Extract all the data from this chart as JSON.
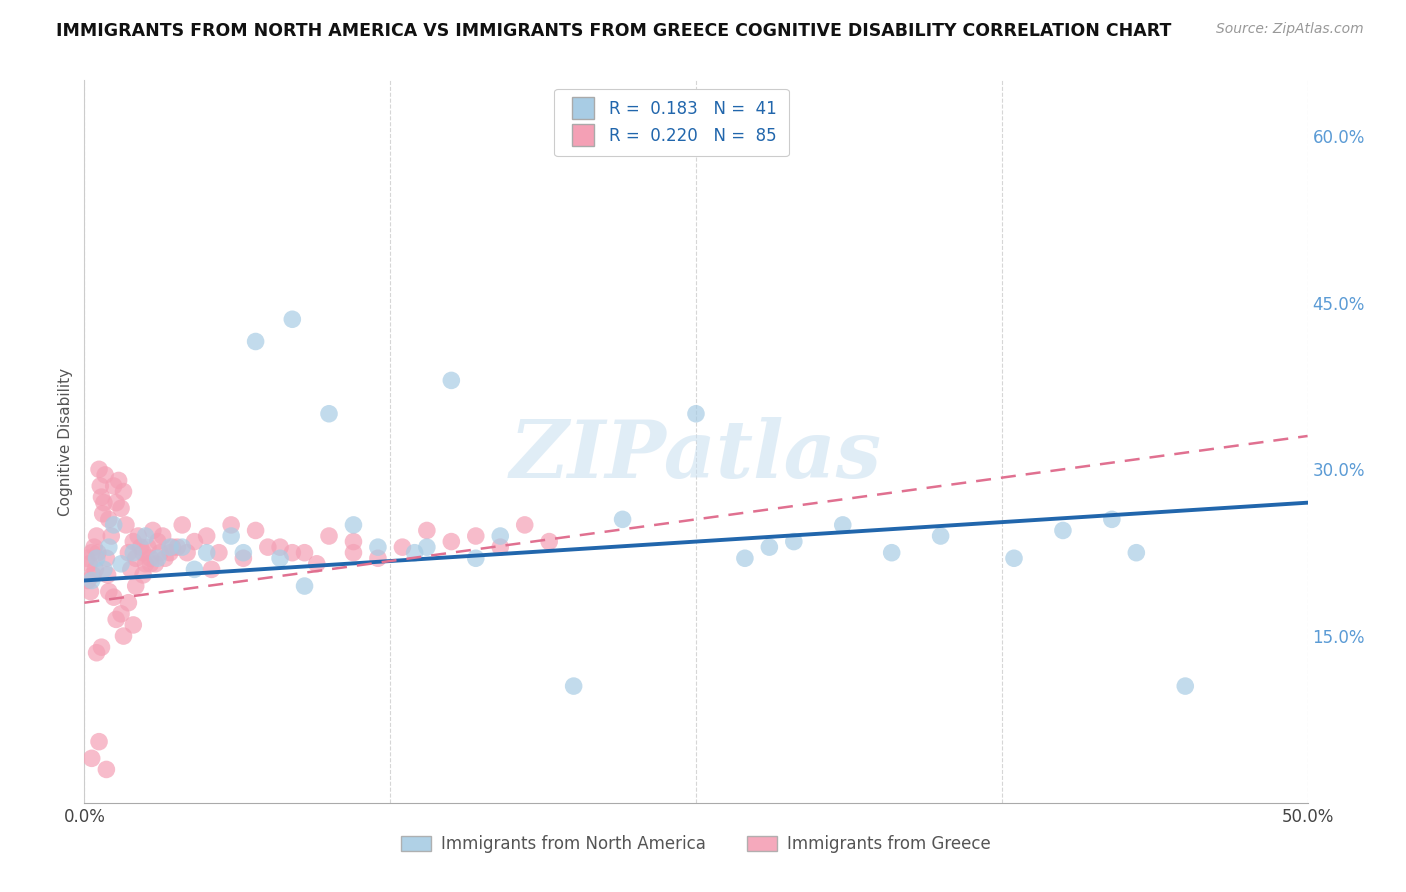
{
  "title": "IMMIGRANTS FROM NORTH AMERICA VS IMMIGRANTS FROM GREECE COGNITIVE DISABILITY CORRELATION CHART",
  "source": "Source: ZipAtlas.com",
  "ylabel": "Cognitive Disability",
  "xlim": [
    0.0,
    50.0
  ],
  "ylim": [
    0.0,
    65.0
  ],
  "ytick_vals": [
    15.0,
    30.0,
    45.0,
    60.0
  ],
  "ytick_labels": [
    "15.0%",
    "30.0%",
    "45.0%",
    "60.0%"
  ],
  "xtick_vals": [
    0.0,
    12.5,
    25.0,
    37.5,
    50.0
  ],
  "xtick_labels": [
    "0.0%",
    "",
    "",
    "",
    "50.0%"
  ],
  "legend1_label": "R =  0.183   N =  41",
  "legend2_label": "R =  0.220   N =  85",
  "series1_color": "#a8cce4",
  "series2_color": "#f4a0b5",
  "series1_line_color": "#2166ac",
  "series2_line_color": "#e07090",
  "series1_name": "Immigrants from North America",
  "series2_name": "Immigrants from Greece",
  "watermark": "ZIPatlas",
  "blue_x": [
    0.3,
    0.5,
    0.8,
    1.0,
    1.5,
    2.0,
    2.5,
    3.0,
    4.0,
    5.0,
    6.0,
    7.0,
    8.5,
    10.0,
    11.0,
    12.0,
    13.5,
    15.0,
    17.0,
    20.0,
    22.0,
    25.0,
    27.0,
    29.0,
    31.0,
    33.0,
    35.0,
    38.0,
    40.0,
    43.0,
    45.0,
    1.2,
    3.5,
    6.5,
    9.0,
    16.0,
    28.0,
    42.0,
    14.0,
    4.5,
    8.0
  ],
  "blue_y": [
    20.0,
    22.0,
    21.0,
    23.0,
    21.5,
    22.5,
    24.0,
    22.0,
    23.0,
    22.5,
    24.0,
    41.5,
    43.5,
    35.0,
    25.0,
    23.0,
    22.5,
    38.0,
    24.0,
    10.5,
    25.5,
    35.0,
    22.0,
    23.5,
    25.0,
    22.5,
    24.0,
    22.0,
    24.5,
    22.5,
    10.5,
    25.0,
    23.0,
    22.5,
    19.5,
    22.0,
    23.0,
    25.5,
    23.0,
    21.0,
    22.0
  ],
  "pink_x": [
    0.1,
    0.15,
    0.2,
    0.25,
    0.3,
    0.35,
    0.4,
    0.45,
    0.5,
    0.55,
    0.6,
    0.65,
    0.7,
    0.75,
    0.8,
    0.85,
    0.9,
    0.95,
    1.0,
    1.1,
    1.2,
    1.3,
    1.4,
    1.5,
    1.6,
    1.7,
    1.8,
    1.9,
    2.0,
    2.1,
    2.2,
    2.3,
    2.4,
    2.5,
    2.6,
    2.7,
    2.8,
    2.9,
    3.0,
    3.2,
    3.5,
    3.8,
    4.0,
    4.5,
    5.0,
    5.5,
    6.0,
    7.0,
    8.0,
    9.0,
    10.0,
    11.0,
    12.0,
    14.0,
    15.0,
    16.0,
    17.0,
    18.0,
    1.0,
    1.2,
    1.5,
    1.8,
    2.1,
    2.4,
    2.7,
    3.1,
    3.6,
    4.2,
    5.2,
    6.5,
    7.5,
    8.5,
    9.5,
    11.0,
    13.0,
    3.3,
    1.6,
    2.0,
    0.7,
    0.5,
    0.3,
    0.6,
    0.9,
    1.3,
    19.0
  ],
  "pink_y": [
    22.0,
    20.0,
    21.5,
    19.0,
    22.5,
    20.5,
    23.0,
    21.0,
    24.0,
    22.5,
    30.0,
    28.5,
    27.5,
    26.0,
    27.0,
    29.5,
    22.0,
    20.5,
    25.5,
    24.0,
    28.5,
    27.0,
    29.0,
    26.5,
    28.0,
    25.0,
    22.5,
    21.0,
    23.5,
    22.0,
    24.0,
    23.0,
    22.5,
    21.5,
    23.0,
    22.0,
    24.5,
    21.5,
    23.5,
    24.0,
    22.5,
    23.0,
    25.0,
    23.5,
    24.0,
    22.5,
    25.0,
    24.5,
    23.0,
    22.5,
    24.0,
    23.5,
    22.0,
    24.5,
    23.5,
    24.0,
    23.0,
    25.0,
    19.0,
    18.5,
    17.0,
    18.0,
    19.5,
    20.5,
    21.5,
    22.5,
    23.0,
    22.5,
    21.0,
    22.0,
    23.0,
    22.5,
    21.5,
    22.5,
    23.0,
    22.0,
    15.0,
    16.0,
    14.0,
    13.5,
    4.0,
    5.5,
    3.0,
    16.5,
    23.5
  ]
}
